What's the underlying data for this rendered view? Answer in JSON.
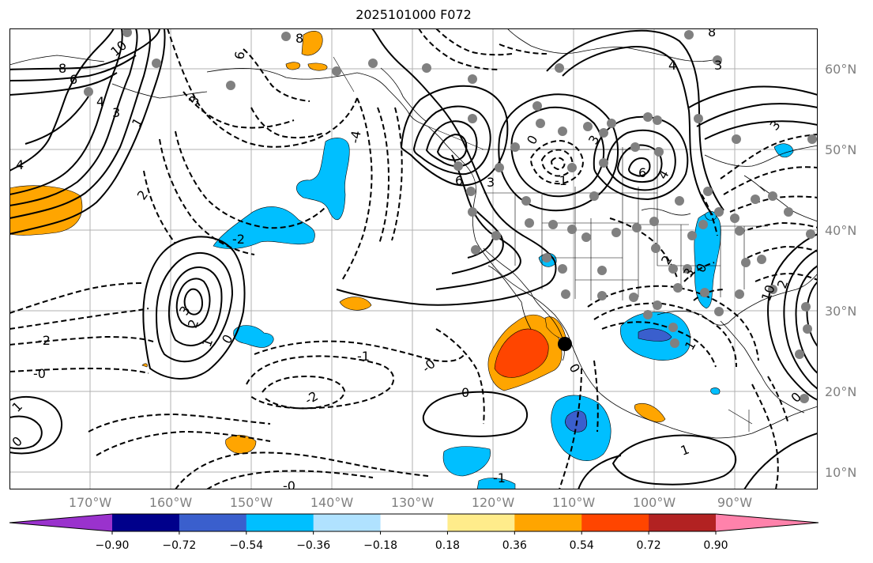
{
  "title": "2025101000 F072",
  "lat_labels": [
    {
      "id": "lat-60",
      "text": "60°N"
    },
    {
      "id": "lat-50",
      "text": "50°N"
    },
    {
      "id": "lat-40",
      "text": "40°N"
    },
    {
      "id": "lat-30",
      "text": "30°N"
    },
    {
      "id": "lat-20",
      "text": "20°N"
    },
    {
      "id": "lat-10",
      "text": "10°N"
    }
  ],
  "lon_labels": [
    {
      "id": "lon-170w",
      "text": "170°W"
    },
    {
      "id": "lon-160w",
      "text": "160°W"
    },
    {
      "id": "lon-150w",
      "text": "150°W"
    },
    {
      "id": "lon-140w",
      "text": "140°W"
    },
    {
      "id": "lon-130w",
      "text": "130°W"
    },
    {
      "id": "lon-120w",
      "text": "120°W"
    },
    {
      "id": "lon-110w",
      "text": "110°W"
    },
    {
      "id": "lon-100w",
      "text": "100°W"
    },
    {
      "id": "lon-90w",
      "text": "90°W"
    }
  ],
  "colorbar": {
    "ticks": [
      "−0.90",
      "−0.72",
      "−0.54",
      "−0.36",
      "−0.18",
      "0.18",
      "0.36",
      "0.54",
      "0.72",
      "0.90"
    ],
    "colors": [
      "#9a32cd",
      "#00008b",
      "#3a5fcd",
      "#00bfff",
      "#b0e2ff",
      "#ffffff",
      "#ffec8b",
      "#ffa500",
      "#ff4500",
      "#b22222",
      "#ff82ab"
    ]
  },
  "contour_labels": [
    "10",
    "8",
    "6",
    "4",
    "3",
    "2",
    "1",
    "0",
    "-0",
    "-1",
    "-2",
    "-3",
    "-4",
    "-6",
    "-8"
  ],
  "map_labels": {
    "l_top_8": "8",
    "l_nw_10": "10",
    "l_nw_8": "8",
    "l_nw_6": "6",
    "l_nw_4": "4",
    "l_nw_3": "3",
    "l_nw_1": "1",
    "l_w_4": "4",
    "l_w_2": "2",
    "l_ak_6": "6",
    "l_ak_neg4": "-4",
    "l_ak_3": "3",
    "l_nepac_2": "-2",
    "l_hi_3": "3",
    "l_hi_2": "2",
    "l_hi_1": "1",
    "l_hi_0": "0",
    "l_w_neg2": "-2",
    "l_w_neg0": "-0",
    "l_c_neg1": "-1",
    "l_c_neg0": "-0",
    "l_c_neg2": "-2",
    "l_low_6": "6",
    "l_low_3": "3",
    "l_rock_0": "0",
    "l_rock_neg1": "-1",
    "l_rock_3": "3",
    "l_r_6": "6",
    "l_r_4": "4",
    "l_top_4": "4",
    "l_top_3": "3",
    "l_ne_8": "8",
    "l_ne_3": "3",
    "l_plain_2": "2",
    "l_plain_0": "0",
    "l_plain_3": "3",
    "l_gulf_1": "1",
    "l_east_10": "10",
    "l_east_2": "2",
    "l_baja_0": "0",
    "l_s_0": "0",
    "l_s_1": "1",
    "l_s_neg0": "-0",
    "l_s_neg1": "-1",
    "l_sw_0": "0",
    "l_sw_1": "1",
    "l_se_0": "0"
  }
}
